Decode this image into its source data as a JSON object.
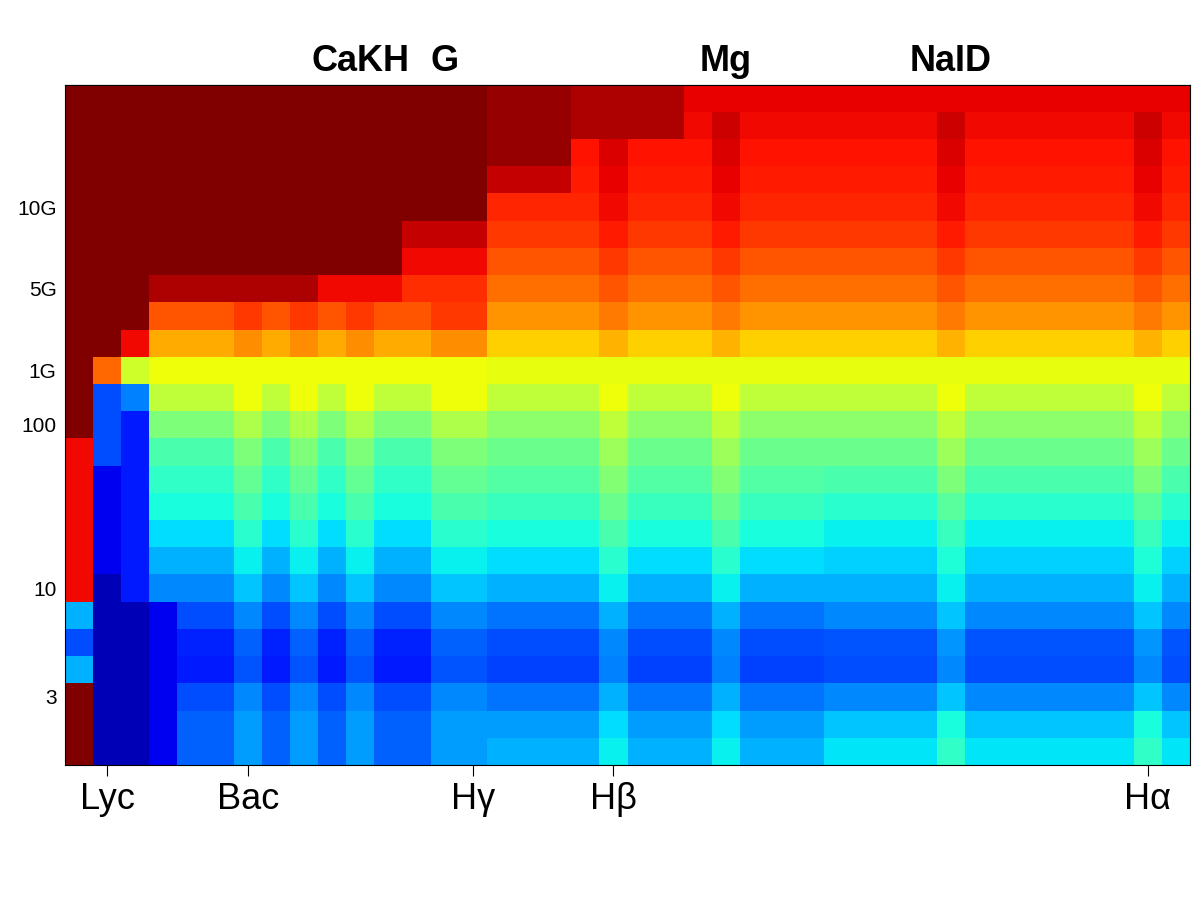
{
  "chart_data": {
    "type": "heatmap",
    "categories": [
      null,
      "Lyc",
      null,
      null,
      null,
      null,
      "Bac",
      null,
      null,
      null,
      null,
      null,
      null,
      null,
      "Hγ",
      null,
      null,
      null,
      null,
      "Hβ",
      null,
      null,
      null,
      null,
      null,
      null,
      null,
      null,
      null,
      null,
      null,
      null,
      null,
      null,
      null,
      null,
      null,
      null,
      "Hα",
      null
    ],
    "top_categories": [
      null,
      null,
      null,
      null,
      null,
      null,
      null,
      null,
      null,
      null,
      "CaKH",
      null,
      null,
      "G",
      null,
      null,
      null,
      null,
      null,
      null,
      null,
      null,
      null,
      "Mg",
      null,
      null,
      null,
      null,
      null,
      null,
      null,
      "NaID",
      null,
      null,
      null,
      null,
      null,
      null,
      null,
      null
    ],
    "rows": [
      null,
      null,
      "3",
      null,
      null,
      null,
      "10",
      null,
      null,
      null,
      null,
      null,
      "100",
      null,
      "1G",
      null,
      null,
      "5G",
      null,
      null,
      "10G",
      null,
      null,
      null,
      null
    ],
    "color_range": [
      0,
      10
    ],
    "cells": [
      [
        10,
        0.5,
        0.5,
        1.0,
        2.2,
        2.2,
        2.8,
        2.2,
        2.8,
        2.2,
        2.8,
        2.2,
        2.2,
        2.8,
        2.8,
        3.0,
        3.0,
        3.0,
        3.0,
        3.6,
        3.0,
        3.0,
        3.0,
        3.6,
        3.0,
        3.0,
        3.0,
        3.5,
        3.5,
        3.5,
        3.5,
        4.1,
        3.5,
        3.5,
        3.5,
        3.5,
        3.5,
        3.5,
        4.1,
        3.5
      ],
      [
        10,
        0.5,
        0.5,
        1.0,
        2.2,
        2.2,
        2.8,
        2.2,
        2.8,
        2.2,
        2.8,
        2.2,
        2.2,
        2.8,
        2.8,
        2.8,
        2.8,
        2.8,
        2.8,
        3.4,
        2.8,
        2.8,
        2.8,
        3.4,
        2.8,
        2.8,
        2.8,
        3.2,
        3.2,
        3.2,
        3.2,
        3.8,
        3.2,
        3.2,
        3.2,
        3.2,
        3.2,
        3.2,
        3.8,
        3.2
      ],
      [
        10,
        0.5,
        0.5,
        1.0,
        2.0,
        2.0,
        2.6,
        2.0,
        2.6,
        2.0,
        2.6,
        2.0,
        2.0,
        2.6,
        2.6,
        2.4,
        2.4,
        2.4,
        2.4,
        3.0,
        2.4,
        2.4,
        2.4,
        3.0,
        2.4,
        2.4,
        2.4,
        2.6,
        2.6,
        2.6,
        2.6,
        3.2,
        2.6,
        2.6,
        2.6,
        2.6,
        2.6,
        2.6,
        3.2,
        2.6
      ],
      [
        3,
        0.5,
        0.5,
        1.0,
        1.5,
        1.5,
        2.1,
        1.5,
        2.1,
        1.5,
        2.1,
        1.5,
        1.5,
        2.1,
        2.1,
        1.9,
        1.9,
        1.9,
        1.9,
        2.5,
        1.9,
        1.9,
        1.9,
        2.5,
        1.9,
        1.9,
        1.9,
        2.0,
        2.0,
        2.0,
        2.0,
        2.6,
        2.0,
        2.0,
        2.0,
        2.0,
        2.0,
        2.0,
        2.6,
        2.0
      ],
      [
        2,
        0.5,
        0.5,
        1.0,
        1.6,
        1.6,
        2.2,
        1.6,
        2.2,
        1.6,
        2.2,
        1.6,
        1.6,
        2.2,
        2.2,
        2.0,
        2.0,
        2.0,
        2.0,
        2.6,
        2.0,
        2.0,
        2.0,
        2.6,
        2.0,
        2.0,
        2.0,
        2.1,
        2.1,
        2.1,
        2.1,
        2.7,
        2.1,
        2.1,
        2.1,
        2.1,
        2.1,
        2.1,
        2.7,
        2.1
      ],
      [
        3,
        0.5,
        0.5,
        1.0,
        2.0,
        2.0,
        2.6,
        2.0,
        2.6,
        2.0,
        2.6,
        2.0,
        2.0,
        2.6,
        2.6,
        2.4,
        2.4,
        2.4,
        2.4,
        3.0,
        2.4,
        2.4,
        2.4,
        3.0,
        2.4,
        2.4,
        2.4,
        2.6,
        2.6,
        2.6,
        2.6,
        3.2,
        2.6,
        2.6,
        2.6,
        2.6,
        2.6,
        2.6,
        3.2,
        2.6
      ],
      [
        9,
        0.5,
        1.5,
        2.6,
        2.6,
        2.6,
        3.2,
        2.6,
        3.2,
        2.6,
        3.2,
        2.6,
        2.6,
        3.2,
        3.2,
        3.0,
        3.0,
        3.0,
        3.0,
        3.6,
        3.0,
        3.0,
        3.0,
        3.6,
        3.0,
        3.0,
        3.0,
        3.0,
        3.0,
        3.0,
        3.0,
        3.6,
        3.0,
        3.0,
        3.0,
        3.0,
        3.0,
        3.0,
        3.6,
        3.0
      ],
      [
        9,
        1,
        1.5,
        3.0,
        3.0,
        3.0,
        3.6,
        3.0,
        3.6,
        3.0,
        3.6,
        3.0,
        3.0,
        3.6,
        3.6,
        3.4,
        3.4,
        3.4,
        3.4,
        4.0,
        3.4,
        3.4,
        3.4,
        4.0,
        3.4,
        3.4,
        3.4,
        3.3,
        3.3,
        3.3,
        3.3,
        3.9,
        3.3,
        3.3,
        3.3,
        3.3,
        3.3,
        3.3,
        3.9,
        3.3
      ],
      [
        9,
        1,
        1.5,
        3.4,
        3.4,
        3.4,
        4.0,
        3.4,
        4.0,
        3.4,
        4.0,
        3.4,
        3.4,
        4.0,
        4.0,
        3.8,
        3.8,
        3.8,
        3.8,
        4.4,
        3.8,
        3.8,
        3.8,
        4.4,
        3.8,
        3.8,
        3.8,
        3.6,
        3.6,
        3.6,
        3.6,
        4.2,
        3.6,
        3.6,
        3.6,
        3.6,
        3.6,
        3.6,
        4.2,
        3.6
      ],
      [
        9,
        1,
        1.5,
        3.8,
        3.8,
        3.8,
        4.4,
        3.8,
        4.4,
        3.8,
        4.4,
        3.8,
        3.8,
        4.4,
        4.4,
        4.2,
        4.2,
        4.2,
        4.2,
        4.8,
        4.2,
        4.2,
        4.2,
        4.8,
        4.2,
        4.2,
        4.2,
        4.0,
        4.0,
        4.0,
        4.0,
        4.6,
        4.0,
        4.0,
        4.0,
        4.0,
        4.0,
        4.0,
        4.6,
        4.0
      ],
      [
        9,
        1,
        1.5,
        4.1,
        4.1,
        4.1,
        4.7,
        4.1,
        4.7,
        4.1,
        4.7,
        4.1,
        4.1,
        4.7,
        4.7,
        4.5,
        4.5,
        4.5,
        4.5,
        5.1,
        4.5,
        4.5,
        4.5,
        5.1,
        4.5,
        4.5,
        4.5,
        4.4,
        4.4,
        4.4,
        4.4,
        5.0,
        4.4,
        4.4,
        4.4,
        4.4,
        4.4,
        4.4,
        5.0,
        4.4
      ],
      [
        9,
        2,
        1.5,
        4.4,
        4.4,
        4.4,
        5.0,
        4.4,
        5.0,
        4.4,
        5.0,
        4.4,
        4.4,
        5.0,
        5.0,
        4.8,
        4.8,
        4.8,
        4.8,
        5.4,
        4.8,
        4.8,
        4.8,
        5.4,
        4.8,
        4.8,
        4.8,
        4.8,
        4.8,
        4.8,
        4.8,
        5.4,
        4.8,
        4.8,
        4.8,
        4.8,
        4.8,
        4.8,
        5.4,
        4.8
      ],
      [
        10,
        2,
        1.5,
        5.0,
        5.0,
        5.0,
        5.6,
        5.0,
        5.6,
        5.0,
        5.6,
        5.0,
        5.0,
        5.6,
        5.6,
        5.2,
        5.2,
        5.2,
        5.2,
        5.8,
        5.2,
        5.2,
        5.2,
        5.8,
        5.2,
        5.2,
        5.2,
        5.2,
        5.2,
        5.2,
        5.2,
        5.8,
        5.2,
        5.2,
        5.2,
        5.2,
        5.2,
        5.2,
        5.8,
        5.2
      ],
      [
        10,
        2,
        2.5,
        5.8,
        5.8,
        5.8,
        6.4,
        5.8,
        6.4,
        5.8,
        6.4,
        5.8,
        5.8,
        6.4,
        6.4,
        5.8,
        5.8,
        5.8,
        5.8,
        6.4,
        5.8,
        5.8,
        5.8,
        6.4,
        5.8,
        5.8,
        5.8,
        5.8,
        5.8,
        5.8,
        5.8,
        6.4,
        5.8,
        5.8,
        5.8,
        5.8,
        5.8,
        5.8,
        6.4,
        5.8
      ],
      [
        10,
        8,
        6,
        6.4,
        6.4,
        6.4,
        6.4,
        6.4,
        6.4,
        6.4,
        6.4,
        6.4,
        6.4,
        6.4,
        6.4,
        6.3,
        6.3,
        6.3,
        6.3,
        6.3,
        6.3,
        6.3,
        6.3,
        6.3,
        6.3,
        6.3,
        6.3,
        6.3,
        6.3,
        6.3,
        6.3,
        6.3,
        6.3,
        6.3,
        6.3,
        6.3,
        6.3,
        6.3,
        6.3,
        6.3
      ],
      [
        10,
        10,
        9,
        7.3,
        7.3,
        7.3,
        7.6,
        7.3,
        7.6,
        7.3,
        7.6,
        7.3,
        7.3,
        7.6,
        7.6,
        6.9,
        6.9,
        6.9,
        6.9,
        7.2,
        6.9,
        6.9,
        6.9,
        7.2,
        6.9,
        6.9,
        6.9,
        6.9,
        6.9,
        6.9,
        6.9,
        7.2,
        6.9,
        6.9,
        6.9,
        6.9,
        6.9,
        6.9,
        7.2,
        6.9
      ],
      [
        10,
        10,
        10,
        8.2,
        8.2,
        8.2,
        8.5,
        8.2,
        8.5,
        8.2,
        8.5,
        8.2,
        8.2,
        8.5,
        8.5,
        7.5,
        7.5,
        7.5,
        7.5,
        7.8,
        7.5,
        7.5,
        7.5,
        7.8,
        7.5,
        7.5,
        7.5,
        7.5,
        7.5,
        7.5,
        7.5,
        7.8,
        7.5,
        7.5,
        7.5,
        7.5,
        7.5,
        7.5,
        7.8,
        7.5
      ],
      [
        10,
        10,
        10,
        9.6,
        9.6,
        9.6,
        9.6,
        9.6,
        9.6,
        9.0,
        9.0,
        9.0,
        8.6,
        8.6,
        8.6,
        7.9,
        7.9,
        7.9,
        7.9,
        8.2,
        7.9,
        7.9,
        7.9,
        8.2,
        7.9,
        7.9,
        7.9,
        7.9,
        7.9,
        7.9,
        7.9,
        8.2,
        7.9,
        7.9,
        7.9,
        7.9,
        7.9,
        7.9,
        8.2,
        7.9
      ],
      [
        10,
        10,
        10,
        10,
        10,
        10,
        10,
        10,
        10,
        10,
        10,
        10,
        9.0,
        9.0,
        9.0,
        8.2,
        8.2,
        8.2,
        8.2,
        8.5,
        8.2,
        8.2,
        8.2,
        8.5,
        8.2,
        8.2,
        8.2,
        8.2,
        8.2,
        8.2,
        8.2,
        8.5,
        8.2,
        8.2,
        8.2,
        8.2,
        8.2,
        8.2,
        8.5,
        8.2
      ],
      [
        10,
        10,
        10,
        10,
        10,
        10,
        10,
        10,
        10,
        10,
        10,
        10,
        9.4,
        9.4,
        9.4,
        8.5,
        8.5,
        8.5,
        8.5,
        8.8,
        8.5,
        8.5,
        8.5,
        8.8,
        8.5,
        8.5,
        8.5,
        8.5,
        8.5,
        8.5,
        8.5,
        8.8,
        8.5,
        8.5,
        8.5,
        8.5,
        8.5,
        8.5,
        8.8,
        8.5
      ],
      [
        10,
        10,
        10,
        10,
        10,
        10,
        10,
        10,
        10,
        10,
        10,
        10,
        10,
        10,
        10,
        8.7,
        8.7,
        8.7,
        8.7,
        9.0,
        8.7,
        8.7,
        8.7,
        9.0,
        8.7,
        8.7,
        8.7,
        8.7,
        8.7,
        8.7,
        8.7,
        9.0,
        8.7,
        8.7,
        8.7,
        8.7,
        8.7,
        8.7,
        9.0,
        8.7
      ],
      [
        10,
        10,
        10,
        10,
        10,
        10,
        10,
        10,
        10,
        10,
        10,
        10,
        10,
        10,
        10,
        9.4,
        9.4,
        9.4,
        8.8,
        9.1,
        8.8,
        8.8,
        8.8,
        9.1,
        8.8,
        8.8,
        8.8,
        8.8,
        8.8,
        8.8,
        8.8,
        9.1,
        8.8,
        8.8,
        8.8,
        8.8,
        8.8,
        8.8,
        9.1,
        8.8
      ],
      [
        10,
        10,
        10,
        10,
        10,
        10,
        10,
        10,
        10,
        10,
        10,
        10,
        10,
        10,
        10,
        9.8,
        9.8,
        9.8,
        8.9,
        9.2,
        8.9,
        8.9,
        8.9,
        9.2,
        8.9,
        8.9,
        8.9,
        8.9,
        8.9,
        8.9,
        8.9,
        9.2,
        8.9,
        8.9,
        8.9,
        8.9,
        8.9,
        8.9,
        9.2,
        8.9
      ],
      [
        10,
        10,
        10,
        10,
        10,
        10,
        10,
        10,
        10,
        10,
        10,
        10,
        10,
        10,
        10,
        9.8,
        9.8,
        9.8,
        9.6,
        9.6,
        9.6,
        9.6,
        9.0,
        9.3,
        9.0,
        9.0,
        9.0,
        9.0,
        9.0,
        9.0,
        9.0,
        9.3,
        9.0,
        9.0,
        9.0,
        9.0,
        9.0,
        9.0,
        9.3,
        9.0
      ],
      [
        10,
        10,
        10,
        10,
        10,
        10,
        10,
        10,
        10,
        10,
        10,
        10,
        10,
        10,
        10,
        9.8,
        9.8,
        9.8,
        9.6,
        9.6,
        9.6,
        9.6,
        9.1,
        9.1,
        9.1,
        9.1,
        9.1,
        9.1,
        9.1,
        9.1,
        9.1,
        9.1,
        9.1,
        9.1,
        9.1,
        9.1,
        9.1,
        9.1,
        9.1,
        9.1
      ]
    ]
  }
}
